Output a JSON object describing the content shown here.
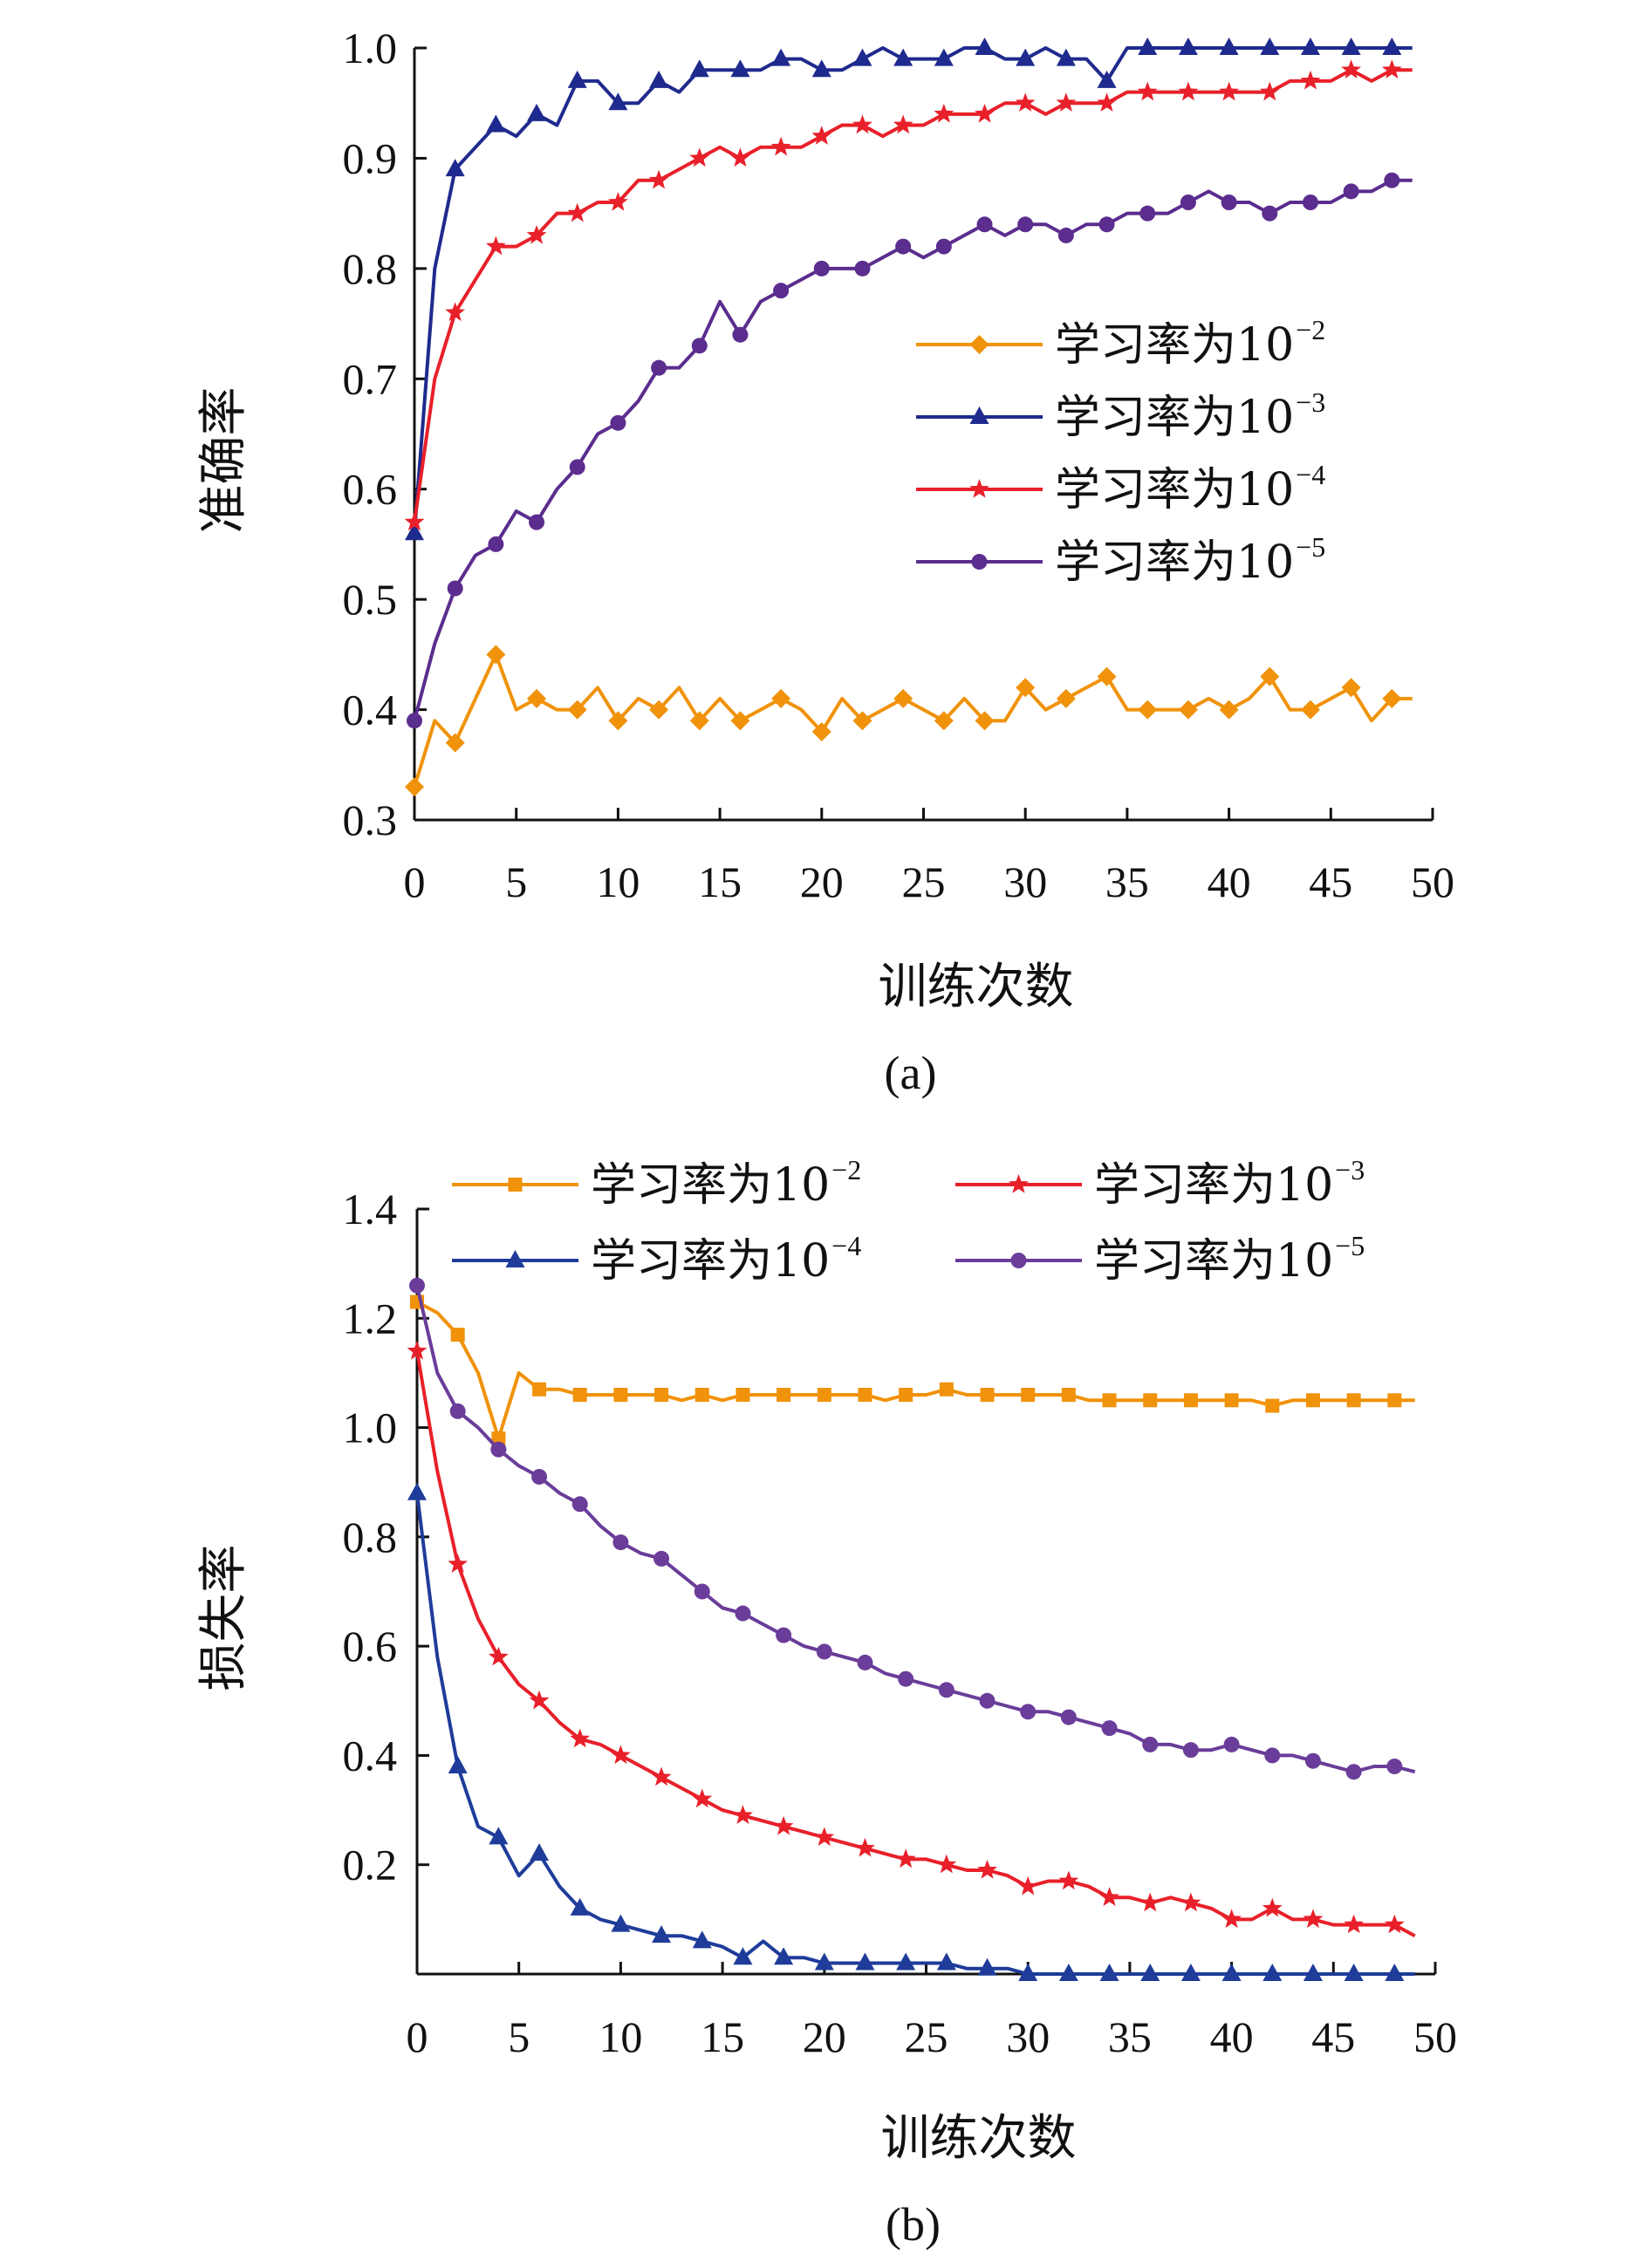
{
  "chart_data": [
    {
      "type": "line",
      "caption": "(a)",
      "xlabel": "训练次数",
      "ylabel": "准确率",
      "xlim": [
        0,
        50
      ],
      "ylim": [
        0.3,
        1.0
      ],
      "xticks": [
        "0",
        "5",
        "10",
        "15",
        "20",
        "25",
        "30",
        "35",
        "40",
        "45",
        "50"
      ],
      "yticks": [
        "0.3",
        "0.4",
        "0.5",
        "0.6",
        "0.7",
        "0.8",
        "0.9",
        "1.0"
      ],
      "legend_position": "center-right",
      "series": [
        {
          "name": "学习率为10",
          "name_sup": "−2",
          "color": "#f0920a",
          "marker": "diamond",
          "x": [
            0,
            1,
            2,
            3,
            4,
            5,
            6,
            7,
            8,
            9,
            10,
            11,
            12,
            13,
            14,
            15,
            16,
            17,
            18,
            19,
            20,
            21,
            22,
            23,
            24,
            25,
            26,
            27,
            28,
            29,
            30,
            31,
            32,
            33,
            34,
            35,
            36,
            37,
            38,
            39,
            40,
            41,
            42,
            43,
            44,
            45,
            46,
            47,
            48,
            49
          ],
          "values": [
            0.33,
            0.39,
            0.37,
            0.41,
            0.45,
            0.4,
            0.41,
            0.4,
            0.4,
            0.42,
            0.39,
            0.41,
            0.4,
            0.42,
            0.39,
            0.41,
            0.39,
            0.4,
            0.41,
            0.4,
            0.38,
            0.41,
            0.39,
            0.4,
            0.41,
            0.4,
            0.39,
            0.41,
            0.39,
            0.39,
            0.42,
            0.4,
            0.41,
            0.42,
            0.43,
            0.4,
            0.4,
            0.4,
            0.4,
            0.41,
            0.4,
            0.41,
            0.43,
            0.4,
            0.4,
            0.41,
            0.42,
            0.39,
            0.41,
            0.41
          ]
        },
        {
          "name": "学习率为10",
          "name_sup": "−3",
          "color": "#1f2a8e",
          "marker": "triangle",
          "x": [
            0,
            1,
            2,
            3,
            4,
            5,
            6,
            7,
            8,
            9,
            10,
            11,
            12,
            13,
            14,
            15,
            16,
            17,
            18,
            19,
            20,
            21,
            22,
            23,
            24,
            25,
            26,
            27,
            28,
            29,
            30,
            31,
            32,
            33,
            34,
            35,
            36,
            37,
            38,
            39,
            40,
            41,
            42,
            43,
            44,
            45,
            46,
            47,
            48,
            49
          ],
          "values": [
            0.56,
            0.8,
            0.89,
            0.91,
            0.93,
            0.92,
            0.94,
            0.93,
            0.97,
            0.97,
            0.95,
            0.95,
            0.97,
            0.96,
            0.98,
            0.98,
            0.98,
            0.98,
            0.99,
            0.99,
            0.98,
            0.98,
            0.99,
            1.0,
            0.99,
            0.99,
            0.99,
            1.0,
            1.0,
            0.99,
            0.99,
            1.0,
            0.99,
            0.99,
            0.97,
            1.0,
            1.0,
            1.0,
            1.0,
            1.0,
            1.0,
            1.0,
            1.0,
            1.0,
            1.0,
            1.0,
            1.0,
            1.0,
            1.0,
            1.0
          ]
        },
        {
          "name": "学习率为10",
          "name_sup": "−4",
          "color": "#e8202a",
          "marker": "star",
          "x": [
            0,
            1,
            2,
            3,
            4,
            5,
            6,
            7,
            8,
            9,
            10,
            11,
            12,
            13,
            14,
            15,
            16,
            17,
            18,
            19,
            20,
            21,
            22,
            23,
            24,
            25,
            26,
            27,
            28,
            29,
            30,
            31,
            32,
            33,
            34,
            35,
            36,
            37,
            38,
            39,
            40,
            41,
            42,
            43,
            44,
            45,
            46,
            47,
            48,
            49
          ],
          "values": [
            0.57,
            0.7,
            0.76,
            0.79,
            0.82,
            0.82,
            0.83,
            0.85,
            0.85,
            0.86,
            0.86,
            0.88,
            0.88,
            0.89,
            0.9,
            0.91,
            0.9,
            0.91,
            0.91,
            0.91,
            0.92,
            0.93,
            0.93,
            0.92,
            0.93,
            0.93,
            0.94,
            0.94,
            0.94,
            0.95,
            0.95,
            0.94,
            0.95,
            0.95,
            0.95,
            0.96,
            0.96,
            0.96,
            0.96,
            0.96,
            0.96,
            0.96,
            0.96,
            0.97,
            0.97,
            0.97,
            0.98,
            0.97,
            0.98,
            0.98
          ]
        },
        {
          "name": "学习率为10",
          "name_sup": "−5",
          "color": "#5b2d8e",
          "marker": "circle",
          "x": [
            0,
            1,
            2,
            3,
            4,
            5,
            6,
            7,
            8,
            9,
            10,
            11,
            12,
            13,
            14,
            15,
            16,
            17,
            18,
            19,
            20,
            21,
            22,
            23,
            24,
            25,
            26,
            27,
            28,
            29,
            30,
            31,
            32,
            33,
            34,
            35,
            36,
            37,
            38,
            39,
            40,
            41,
            42,
            43,
            44,
            45,
            46,
            47,
            48,
            49
          ],
          "values": [
            0.39,
            0.46,
            0.51,
            0.54,
            0.55,
            0.58,
            0.57,
            0.6,
            0.62,
            0.65,
            0.66,
            0.68,
            0.71,
            0.71,
            0.73,
            0.77,
            0.74,
            0.77,
            0.78,
            0.79,
            0.8,
            0.8,
            0.8,
            0.81,
            0.82,
            0.81,
            0.82,
            0.83,
            0.84,
            0.83,
            0.84,
            0.84,
            0.83,
            0.84,
            0.84,
            0.85,
            0.85,
            0.85,
            0.86,
            0.87,
            0.86,
            0.86,
            0.85,
            0.86,
            0.86,
            0.86,
            0.87,
            0.87,
            0.88,
            0.88
          ]
        }
      ]
    },
    {
      "type": "line",
      "caption": "(b)",
      "xlabel": "训练次数",
      "ylabel": "损失率",
      "xlim": [
        0,
        50
      ],
      "ylim": [
        0.0,
        1.4
      ],
      "xticks": [
        "0",
        "5",
        "10",
        "15",
        "20",
        "25",
        "30",
        "35",
        "40",
        "45",
        "50"
      ],
      "yticks": [
        "0.2",
        "0.4",
        "0.6",
        "0.8",
        "1.0",
        "1.2",
        "1.4"
      ],
      "legend_position": "top",
      "series": [
        {
          "name": "学习率为10",
          "name_sup": "−2",
          "color": "#f0920a",
          "marker": "square",
          "x": [
            0,
            1,
            2,
            3,
            4,
            5,
            6,
            7,
            8,
            9,
            10,
            11,
            12,
            13,
            14,
            15,
            16,
            17,
            18,
            19,
            20,
            21,
            22,
            23,
            24,
            25,
            26,
            27,
            28,
            29,
            30,
            31,
            32,
            33,
            34,
            35,
            36,
            37,
            38,
            39,
            40,
            41,
            42,
            43,
            44,
            45,
            46,
            47,
            48,
            49
          ],
          "values": [
            1.23,
            1.21,
            1.17,
            1.1,
            0.98,
            1.1,
            1.07,
            1.07,
            1.06,
            1.06,
            1.06,
            1.06,
            1.06,
            1.05,
            1.06,
            1.05,
            1.06,
            1.06,
            1.06,
            1.06,
            1.06,
            1.06,
            1.06,
            1.05,
            1.06,
            1.06,
            1.07,
            1.06,
            1.06,
            1.06,
            1.06,
            1.06,
            1.06,
            1.05,
            1.05,
            1.05,
            1.05,
            1.05,
            1.05,
            1.05,
            1.05,
            1.05,
            1.04,
            1.05,
            1.05,
            1.05,
            1.05,
            1.05,
            1.05,
            1.05
          ]
        },
        {
          "name": "学习率为10",
          "name_sup": "−3",
          "color": "#e8202a",
          "marker": "star",
          "x": [
            0,
            1,
            2,
            3,
            4,
            5,
            6,
            7,
            8,
            9,
            10,
            11,
            12,
            13,
            14,
            15,
            16,
            17,
            18,
            19,
            20,
            21,
            22,
            23,
            24,
            25,
            26,
            27,
            28,
            29,
            30,
            31,
            32,
            33,
            34,
            35,
            36,
            37,
            38,
            39,
            40,
            41,
            42,
            43,
            44,
            45,
            46,
            47,
            48,
            49
          ],
          "values": [
            1.14,
            0.92,
            0.75,
            0.65,
            0.58,
            0.53,
            0.5,
            0.46,
            0.43,
            0.42,
            0.4,
            0.38,
            0.36,
            0.34,
            0.32,
            0.3,
            0.29,
            0.28,
            0.27,
            0.26,
            0.25,
            0.24,
            0.23,
            0.22,
            0.21,
            0.21,
            0.2,
            0.19,
            0.19,
            0.18,
            0.16,
            0.17,
            0.17,
            0.16,
            0.14,
            0.14,
            0.13,
            0.14,
            0.13,
            0.12,
            0.1,
            0.1,
            0.12,
            0.1,
            0.1,
            0.09,
            0.09,
            0.09,
            0.09,
            0.07
          ]
        },
        {
          "name": "学习率为10",
          "name_sup": "−4",
          "color": "#1f3c9a",
          "marker": "triangle",
          "x": [
            0,
            1,
            2,
            3,
            4,
            5,
            6,
            7,
            8,
            9,
            10,
            11,
            12,
            13,
            14,
            15,
            16,
            17,
            18,
            19,
            20,
            21,
            22,
            23,
            24,
            25,
            26,
            27,
            28,
            29,
            30,
            31,
            32,
            33,
            34,
            35,
            36,
            37,
            38,
            39,
            40,
            41,
            42,
            43,
            44,
            45,
            46,
            47,
            48,
            49
          ],
          "values": [
            0.88,
            0.58,
            0.38,
            0.27,
            0.25,
            0.18,
            0.22,
            0.16,
            0.12,
            0.1,
            0.09,
            0.08,
            0.07,
            0.07,
            0.06,
            0.05,
            0.03,
            0.06,
            0.03,
            0.03,
            0.02,
            0.02,
            0.02,
            0.02,
            0.02,
            0.02,
            0.02,
            0.01,
            0.01,
            0.01,
            0.0,
            0.0,
            0.0,
            0.0,
            0.0,
            0.0,
            0.0,
            0.0,
            0.0,
            0.0,
            0.0,
            0.0,
            0.0,
            0.0,
            0.0,
            0.0,
            0.0,
            0.0,
            0.0,
            0.0
          ]
        },
        {
          "name": "学习率为10",
          "name_sup": "−5",
          "color": "#6a3d9a",
          "marker": "circle",
          "x": [
            0,
            1,
            2,
            3,
            4,
            5,
            6,
            7,
            8,
            9,
            10,
            11,
            12,
            13,
            14,
            15,
            16,
            17,
            18,
            19,
            20,
            21,
            22,
            23,
            24,
            25,
            26,
            27,
            28,
            29,
            30,
            31,
            32,
            33,
            34,
            35,
            36,
            37,
            38,
            39,
            40,
            41,
            42,
            43,
            44,
            45,
            46,
            47,
            48,
            49
          ],
          "values": [
            1.26,
            1.1,
            1.03,
            1.0,
            0.96,
            0.93,
            0.91,
            0.88,
            0.86,
            0.82,
            0.79,
            0.77,
            0.76,
            0.73,
            0.7,
            0.67,
            0.66,
            0.64,
            0.62,
            0.6,
            0.59,
            0.58,
            0.57,
            0.55,
            0.54,
            0.53,
            0.52,
            0.51,
            0.5,
            0.49,
            0.48,
            0.48,
            0.47,
            0.46,
            0.45,
            0.44,
            0.42,
            0.42,
            0.41,
            0.41,
            0.42,
            0.41,
            0.4,
            0.4,
            0.39,
            0.38,
            0.37,
            0.38,
            0.38,
            0.37
          ]
        }
      ]
    }
  ]
}
